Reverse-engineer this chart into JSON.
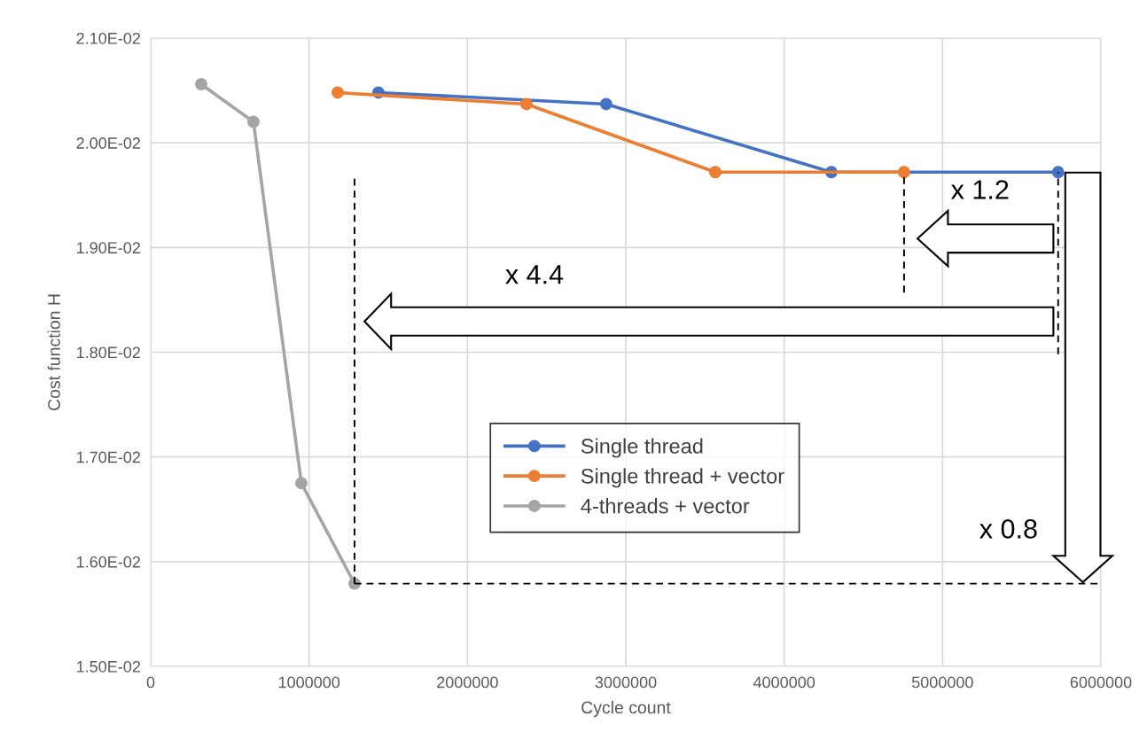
{
  "chart_data": {
    "type": "line",
    "xlabel": "Cycle count",
    "ylabel": "Cost function H",
    "xlim": [
      0,
      6000000
    ],
    "xticks": [
      0,
      1000000,
      2000000,
      3000000,
      4000000,
      5000000,
      6000000
    ],
    "ylim": [
      0.015,
      0.021
    ],
    "yticks": [
      {
        "value": 0.015,
        "label": "1.50E-02"
      },
      {
        "value": 0.016,
        "label": "1.60E-02"
      },
      {
        "value": 0.017,
        "label": "1.70E-02"
      },
      {
        "value": 0.018,
        "label": "1.80E-02"
      },
      {
        "value": 0.019,
        "label": "1.90E-02"
      },
      {
        "value": 0.02,
        "label": "2.00E-02"
      },
      {
        "value": 0.021,
        "label": "2.10E-02"
      }
    ],
    "grid": true,
    "legend": "center",
    "marker": "circle",
    "series": [
      {
        "name": "Single thread",
        "color": "#4472c4",
        "x": [
          1438000,
          2876000,
          4298000,
          5730000
        ],
        "values": [
          0.02048,
          0.02037,
          0.01972,
          0.01972
        ]
      },
      {
        "name": "Single thread + vector",
        "color": "#ed7d31",
        "x": [
          1181000,
          2373000,
          3565000,
          4757000
        ],
        "values": [
          0.02048,
          0.02037,
          0.01972,
          0.01972
        ]
      },
      {
        "name": "4-threads + vector",
        "color": "#a5a5a5",
        "x": [
          319000,
          649000,
          951000,
          1287000
        ],
        "values": [
          0.02056,
          0.0202,
          0.01675,
          0.01579
        ]
      },
      {
        "color": "#000000",
        "line_style": "dashed",
        "marker": "none",
        "x": [
          1287000,
          1287000
        ],
        "values": [
          0.01579,
          0.01968
        ]
      },
      {
        "color": "#000000",
        "line_style": "dashed",
        "marker": "none",
        "x": [
          4757000,
          4757000
        ],
        "values": [
          0.01857,
          0.01972
        ]
      },
      {
        "color": "#000000",
        "line_style": "dashed",
        "marker": "none",
        "x": [
          5730000,
          5730000
        ],
        "values": [
          0.01798,
          0.01972
        ]
      },
      {
        "color": "#000000",
        "line_style": "dashed",
        "marker": "none",
        "x": [
          1287000,
          6000000
        ],
        "values": [
          0.01579,
          0.01579
        ]
      }
    ],
    "annotations": [
      "x 1.2",
      "x 4.4",
      "x 0.8"
    ]
  }
}
